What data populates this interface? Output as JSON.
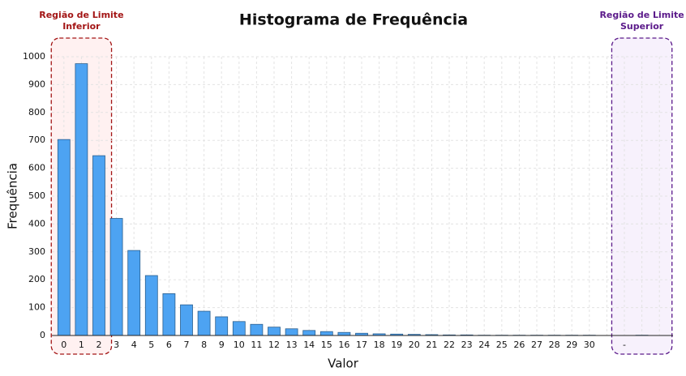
{
  "chart_data": {
    "type": "bar",
    "title": "Histograma de Frequência",
    "x_label": "Valor",
    "y_label": "Frequência",
    "categories": [
      "0",
      "1",
      "2",
      "3",
      "4",
      "5",
      "6",
      "7",
      "8",
      "9",
      "10",
      "11",
      "12",
      "13",
      "14",
      "15",
      "16",
      "17",
      "18",
      "19",
      "20",
      "21",
      "22",
      "23",
      "24",
      "25",
      "26",
      "27",
      "28",
      "29",
      "30",
      null,
      "-",
      null,
      null
    ],
    "values": [
      703,
      975,
      645,
      420,
      305,
      215,
      150,
      110,
      87,
      67,
      50,
      40,
      30,
      24,
      18,
      14,
      11,
      8,
      6,
      5,
      4,
      3,
      2,
      2,
      1,
      1,
      1,
      1,
      1,
      1,
      1,
      0,
      0,
      1,
      0
    ],
    "color": "#4da3f2",
    "edge_color": "#2b5f8e",
    "ylim": [
      0,
      1000
    ],
    "yticks": [
      0,
      100,
      200,
      300,
      400,
      500,
      600,
      700,
      800,
      900,
      1000
    ],
    "grid": true,
    "annotations": [
      {
        "lines": [
          "Região de Limite",
          "Inferior"
        ],
        "color": "#a31515"
      },
      {
        "lines": [
          "Região de Limite",
          "Superior"
        ],
        "color": "#5b1a8a"
      }
    ]
  }
}
